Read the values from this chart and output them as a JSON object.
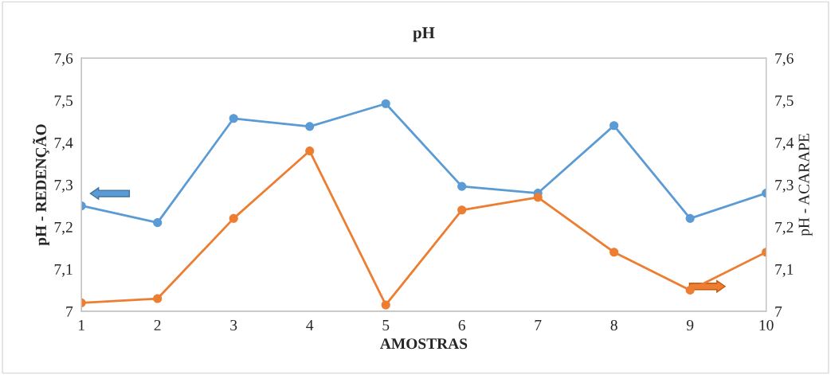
{
  "chart_data": {
    "type": "line",
    "title": "pH",
    "xlabel": "AMOSTRAS",
    "ylabel": "pH - REDENÇÃO",
    "y2label": "pH - ACARAPE",
    "x": [
      1,
      2,
      3,
      4,
      5,
      6,
      7,
      8,
      9,
      10
    ],
    "series": [
      {
        "color": "#5b9bd5",
        "values": [
          7.25,
          7.21,
          7.457,
          7.438,
          7.492,
          7.296,
          7.28,
          7.44,
          7.22,
          7.28
        ]
      },
      {
        "color": "#ed7d31",
        "axis": "y2",
        "values": [
          7.02,
          7.03,
          7.22,
          7.38,
          7.015,
          7.24,
          7.27,
          7.14,
          7.05,
          7.14
        ]
      }
    ],
    "marker": "circle",
    "xlim": [
      1,
      10
    ],
    "xticks": [
      1,
      2,
      3,
      4,
      5,
      6,
      7,
      8,
      9,
      10
    ],
    "ylim": [
      7,
      7.6
    ],
    "yticks": [
      7,
      {
        "value": 7.1,
        "label": "7,1"
      },
      {
        "value": 7.2,
        "label": "7,2"
      },
      {
        "value": 7.3,
        "label": "7,3"
      },
      {
        "value": 7.4,
        "label": "7,4"
      },
      {
        "value": 7.5,
        "label": "7,5"
      },
      {
        "value": 7.6,
        "label": "7,6"
      }
    ],
    "y2lim": [
      7,
      7.6
    ],
    "y2ticks": [
      7,
      {
        "value": 7.1,
        "label": "7,1"
      },
      {
        "value": 7.2,
        "label": "7,2"
      },
      {
        "value": 7.3,
        "label": "7,3"
      },
      {
        "value": 7.4,
        "label": "7,4"
      },
      {
        "value": 7.5,
        "label": "7,5"
      },
      {
        "value": 7.6,
        "label": "7,6"
      }
    ],
    "grid": false,
    "legend": false
  }
}
